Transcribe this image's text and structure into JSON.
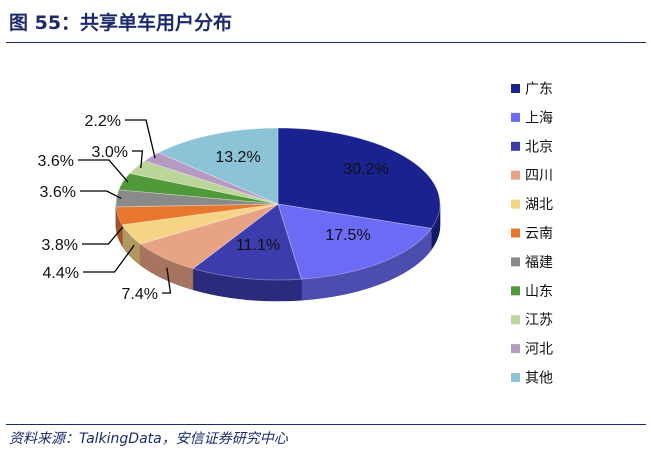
{
  "header": {
    "title": "图 55：共享单车用户分布"
  },
  "footer": {
    "source": "资料来源：TalkingData，安信证券研究中心"
  },
  "chart_data": {
    "type": "pie",
    "title": "共享单车用户分布",
    "three_d": true,
    "legend_position": "right",
    "value_format": "percent",
    "slices": [
      {
        "label": "广东",
        "value": 30.2,
        "display": "30.2%",
        "color": "#1a228f"
      },
      {
        "label": "上海",
        "value": 17.5,
        "display": "17.5%",
        "color": "#6b6bf5"
      },
      {
        "label": "北京",
        "value": 11.1,
        "display": "11.1%",
        "color": "#3c3cad"
      },
      {
        "label": "四川",
        "value": 7.4,
        "display": "7.4%",
        "color": "#e8a384"
      },
      {
        "label": "湖北",
        "value": 4.4,
        "display": "4.4%",
        "color": "#f5d486"
      },
      {
        "label": "云南",
        "value": 3.8,
        "display": "3.8%",
        "color": "#e8772e"
      },
      {
        "label": "福建",
        "value": 3.6,
        "display": "3.6%",
        "color": "#8a8a8a"
      },
      {
        "label": "山东",
        "value": 3.6,
        "display": "3.6%",
        "color": "#4e9a3a"
      },
      {
        "label": "江苏",
        "value": 3.0,
        "display": "3.0%",
        "color": "#bcd59a"
      },
      {
        "label": "河北",
        "value": 2.2,
        "display": "2.2%",
        "color": "#b79ac2"
      },
      {
        "label": "其他",
        "value": 13.2,
        "display": "13.2%",
        "color": "#8cc3d6"
      }
    ]
  }
}
